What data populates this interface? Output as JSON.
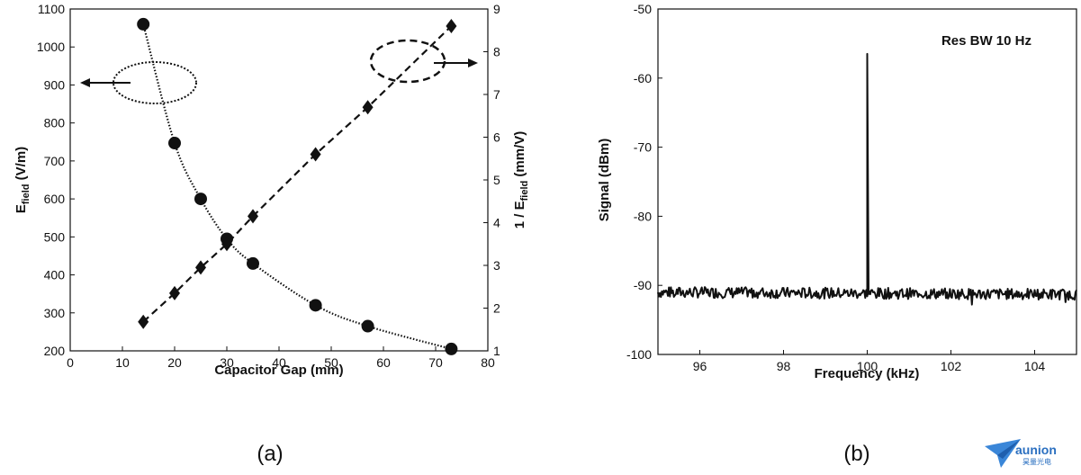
{
  "chart_data": [
    {
      "type": "scatter",
      "panel_label": "(a)",
      "xlabel": "Capacitor Gap (mm)",
      "ylabel_left": {
        "main": "E",
        "sub": "field",
        "unit": " (V/m)"
      },
      "ylabel_right": {
        "main": "1 / E",
        "sub": "field",
        "unit": " (mm/V)"
      },
      "xlim": [
        0,
        80
      ],
      "ylim_left": [
        200,
        1100
      ],
      "ylim_right": [
        1,
        9
      ],
      "xticks": [
        0,
        10,
        20,
        30,
        40,
        50,
        60,
        70,
        80
      ],
      "yticks_left": [
        200,
        300,
        400,
        500,
        600,
        700,
        800,
        900,
        1000,
        1100
      ],
      "yticks_right": [
        1,
        2,
        3,
        4,
        5,
        6,
        7,
        8,
        9
      ],
      "series": [
        {
          "axis": "left",
          "marker": "circle",
          "line": "dotted",
          "x": [
            14,
            20,
            25,
            30,
            35,
            47,
            57,
            73
          ],
          "y": [
            1060,
            747,
            600,
            495,
            430,
            320,
            265,
            205
          ]
        },
        {
          "axis": "right",
          "marker": "diamond",
          "line": "dashed",
          "x": [
            14,
            20,
            25,
            30,
            35,
            47,
            57,
            73
          ],
          "y": [
            1.68,
            2.35,
            2.95,
            3.5,
            4.15,
            5.6,
            6.7,
            8.6
          ]
        }
      ]
    },
    {
      "type": "line",
      "panel_label": "(b)",
      "annotation": "Res BW 10 Hz",
      "xlabel": "Frequency (kHz)",
      "ylabel": "Signal (dBm)",
      "xlim": [
        95,
        105
      ],
      "ylim": [
        -100,
        -50
      ],
      "xticks": [
        96,
        98,
        100,
        102,
        104
      ],
      "yticks": [
        -50,
        -60,
        -70,
        -80,
        -90,
        -100
      ],
      "noise_floor": -91,
      "peak": {
        "x": 100,
        "y": -56.5
      }
    }
  ],
  "logo": {
    "text": "aunion",
    "subtext": "昊量光电"
  }
}
